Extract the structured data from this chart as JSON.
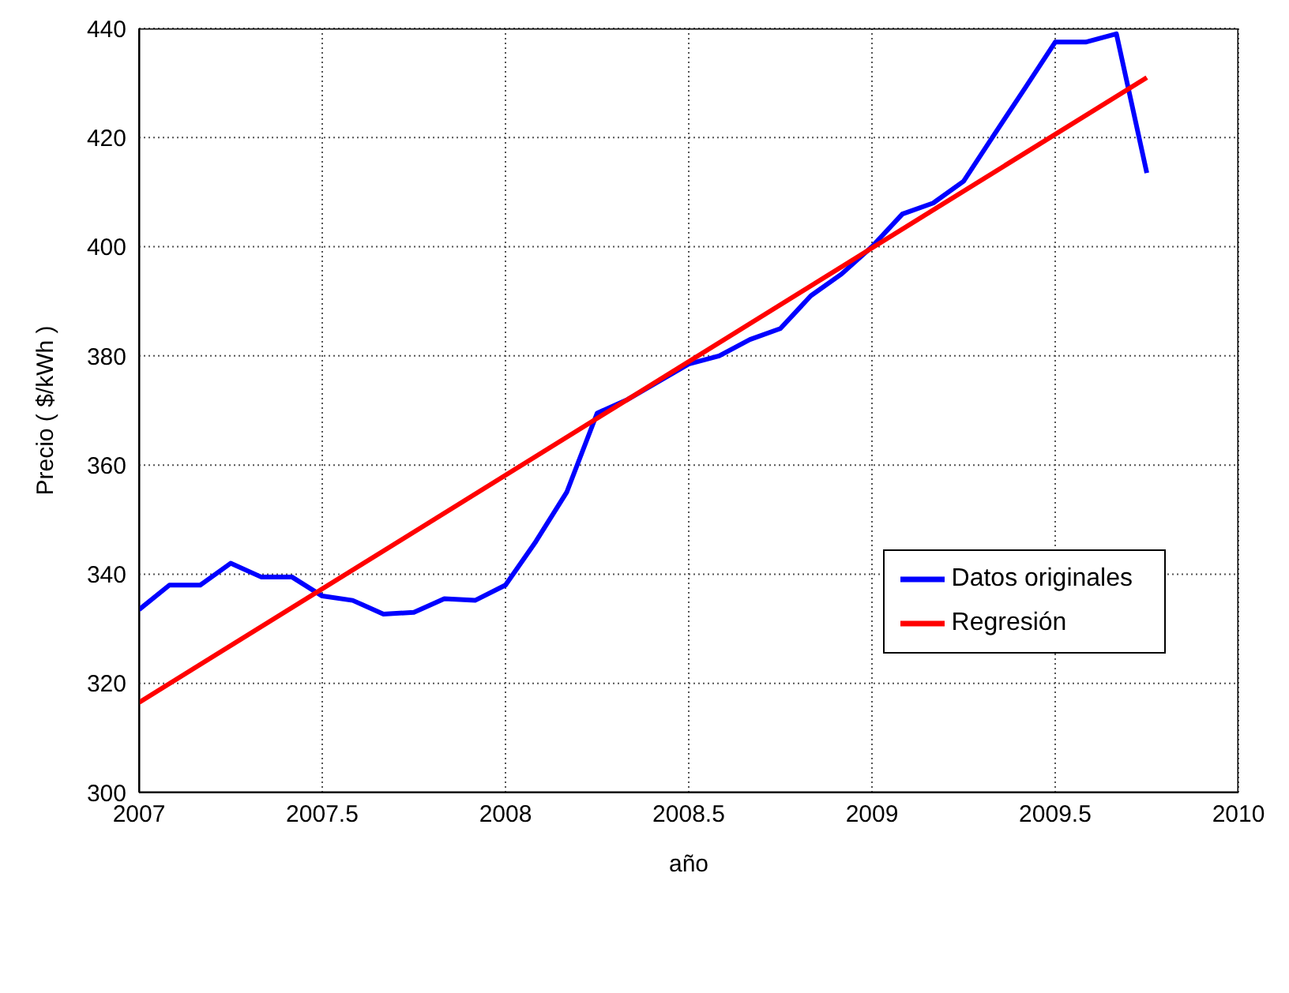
{
  "chart_data": {
    "type": "line",
    "xlabel": "año",
    "ylabel": "Precio ( $/kWh )",
    "xlim": [
      2007,
      2010
    ],
    "xticks": [
      2007,
      2007.5,
      2008,
      2008.5,
      2009,
      2009.5,
      2010
    ],
    "ylim": [
      300,
      440
    ],
    "yticks": [
      300,
      320,
      340,
      360,
      380,
      400,
      420,
      440
    ],
    "grid": true,
    "legend": "right",
    "line_style": "solid",
    "marker": "none",
    "series": [
      {
        "name": "Datos originales",
        "color": "#0000ff",
        "x": [
          2007,
          2007.083,
          2007.167,
          2007.25,
          2007.333,
          2007.417,
          2007.5,
          2007.583,
          2007.667,
          2007.75,
          2007.833,
          2007.917,
          2008,
          2008.083,
          2008.167,
          2008.25,
          2008.333,
          2008.5,
          2008.583,
          2008.667,
          2008.75,
          2008.833,
          2008.917,
          2009,
          2009.083,
          2009.167,
          2009.25,
          2009.333,
          2009.417,
          2009.5,
          2009.583,
          2009.667,
          2009.75
        ],
        "values": [
          333.5,
          338,
          338,
          342,
          339.5,
          339.5,
          336,
          335.2,
          332.7,
          333,
          335.5,
          335.2,
          338,
          346,
          355,
          369.5,
          372,
          378.5,
          380,
          383,
          385,
          391,
          395,
          400,
          406,
          408,
          412,
          420.5,
          429,
          437.5,
          437.5,
          439,
          413.5
        ]
      },
      {
        "name": "Regresión",
        "type": "line",
        "color": "#ff0000",
        "x": [
          2007,
          2009.75
        ],
        "values": [
          316.5,
          431
        ]
      }
    ]
  }
}
